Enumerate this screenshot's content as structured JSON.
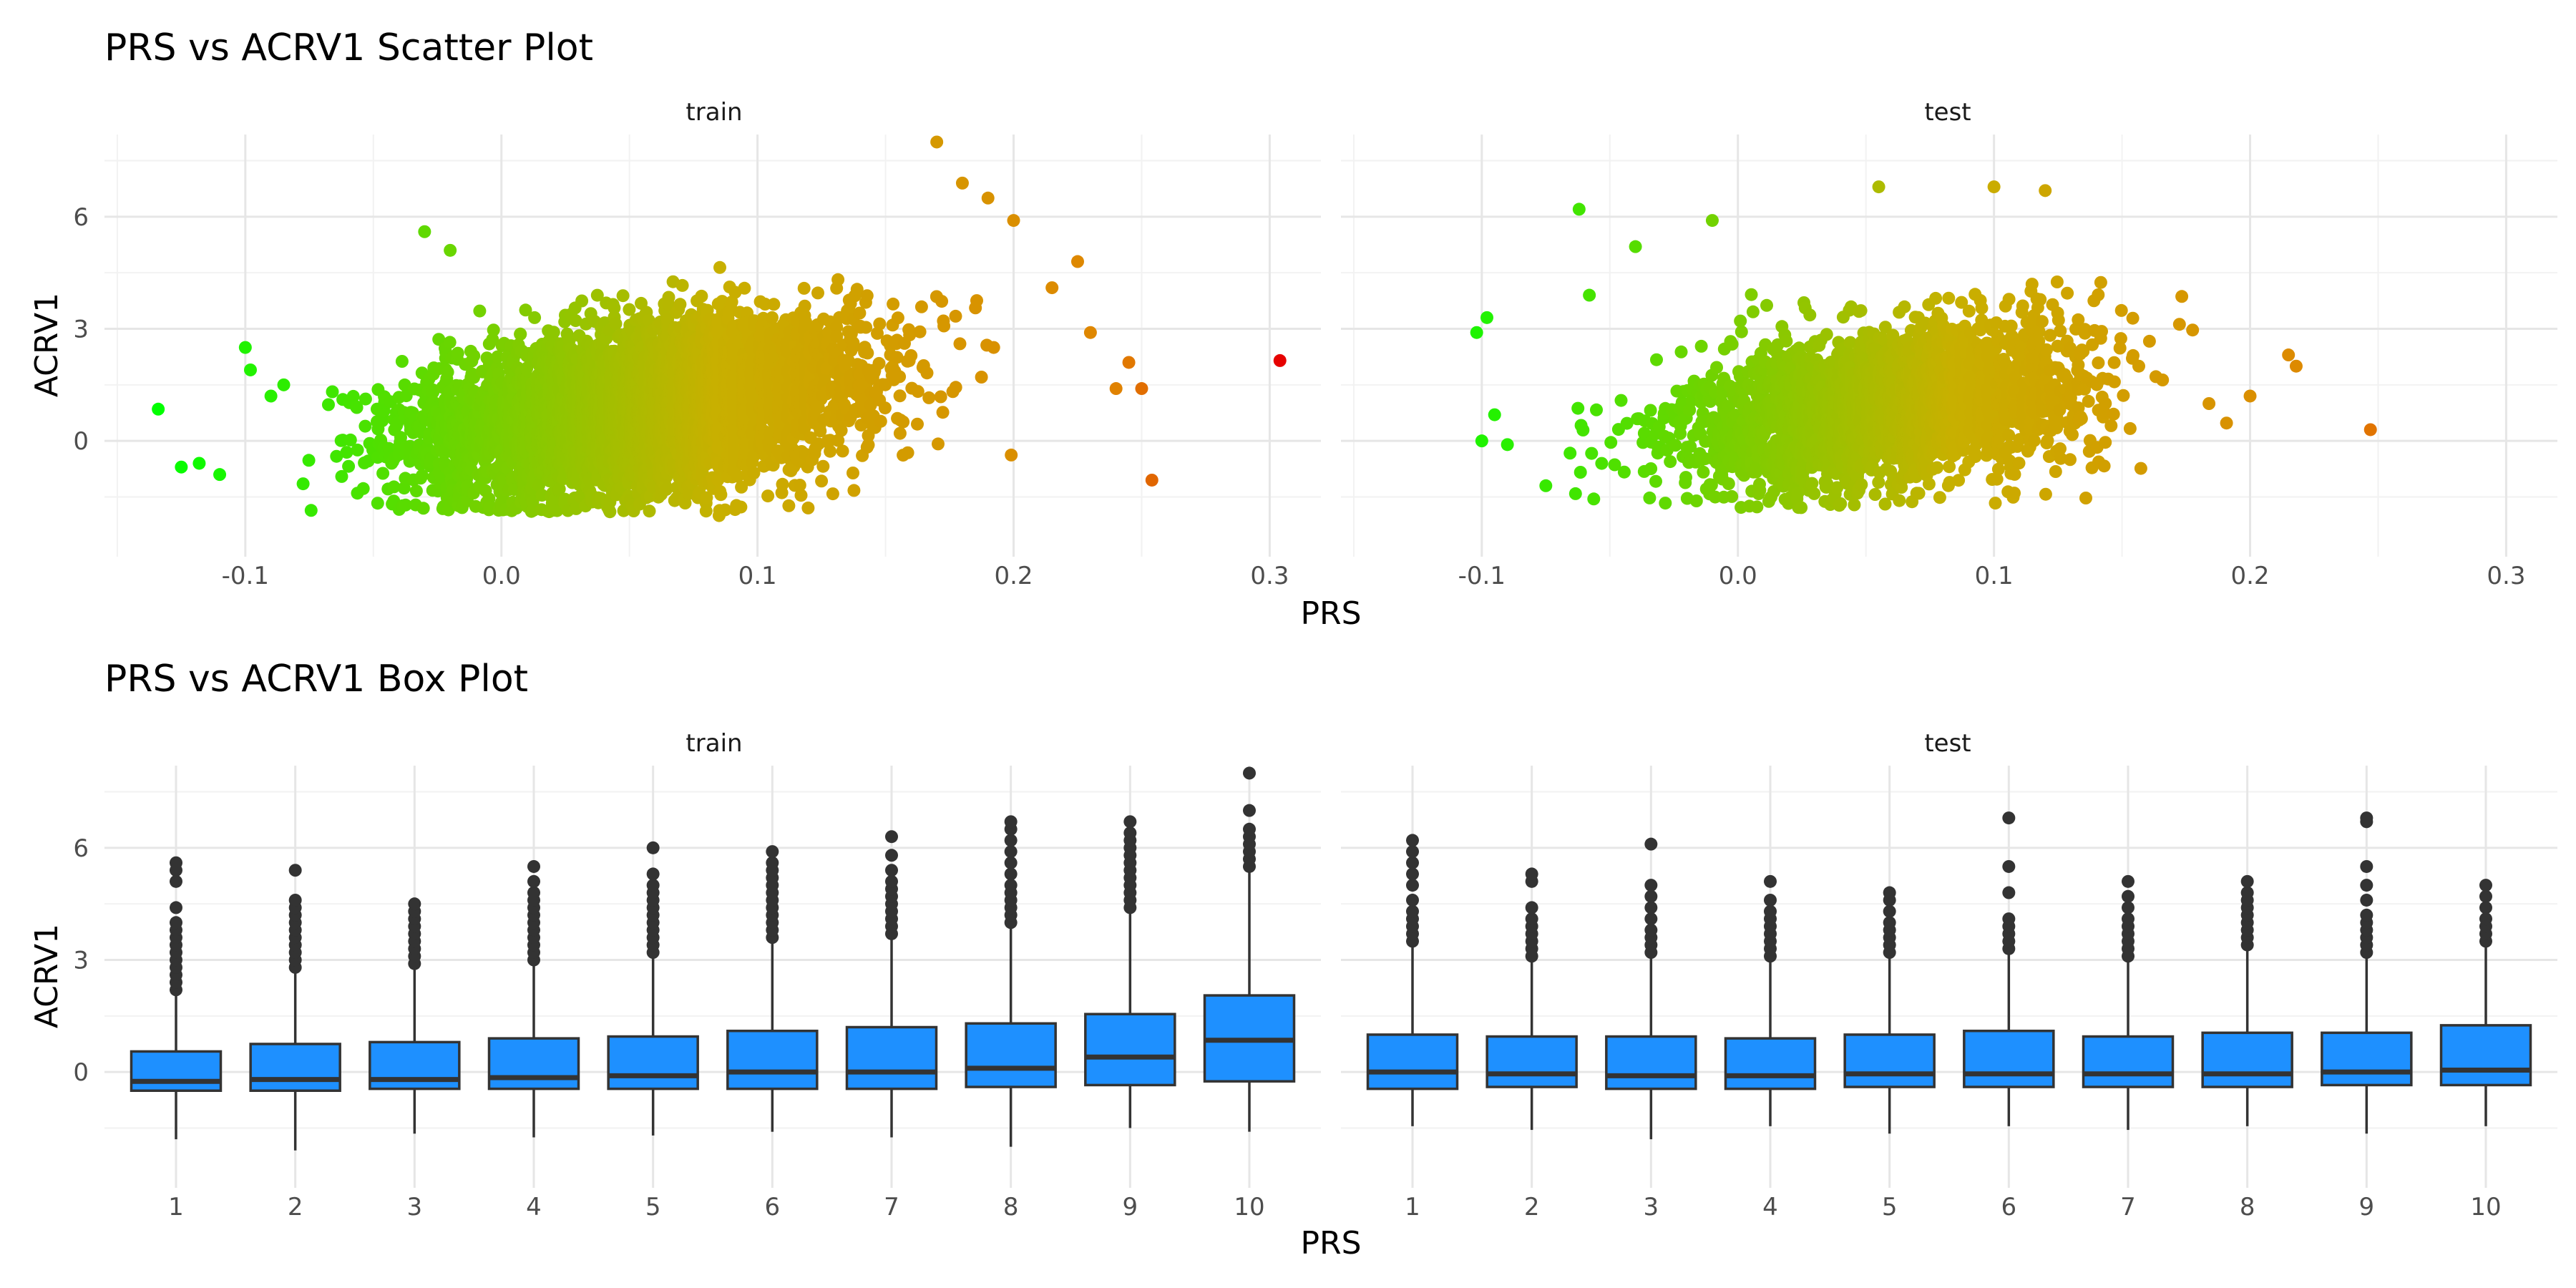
{
  "chart_data": [
    {
      "type": "scatter",
      "title": "PRS vs ACRV1 Scatter Plot",
      "xlabel": "PRS",
      "ylabel": "ACRV1",
      "xlim": [
        -0.155,
        0.32
      ],
      "ylim": [
        -3.1,
        8.2
      ],
      "x_ticks": [
        -0.1,
        0.0,
        0.1,
        0.2,
        0.3
      ],
      "x_tick_labels": [
        "-0.1",
        "0.0",
        "0.1",
        "0.2",
        "0.3"
      ],
      "y_ticks": [
        0,
        3,
        6
      ],
      "y_tick_labels": [
        "0",
        "3",
        "6"
      ],
      "grid": true,
      "legend": "none",
      "color_scale": {
        "low": "#00ff00",
        "mid": "#c8b000",
        "high": "#e60000",
        "domain": [
          -0.135,
          0.305
        ]
      },
      "panels": [
        {
          "name": "train",
          "cloud": {
            "x_center": 0.055,
            "x_sd": 0.042,
            "y_mean": 0.9,
            "y_sd": 1.05,
            "count": 5200,
            "y_floor": -1.9
          },
          "points": [
            {
              "x": -0.134,
              "y": 0.85
            },
            {
              "x": -0.125,
              "y": -0.7
            },
            {
              "x": -0.118,
              "y": -0.6
            },
            {
              "x": -0.11,
              "y": -0.9
            },
            {
              "x": -0.1,
              "y": 2.5
            },
            {
              "x": -0.098,
              "y": 1.9
            },
            {
              "x": -0.09,
              "y": 1.2
            },
            {
              "x": -0.085,
              "y": 1.5
            },
            {
              "x": -0.03,
              "y": 5.6
            },
            {
              "x": -0.02,
              "y": 5.1
            },
            {
              "x": 0.085,
              "y": -2.0
            },
            {
              "x": 0.17,
              "y": 8.0
            },
            {
              "x": 0.18,
              "y": 6.9
            },
            {
              "x": 0.19,
              "y": 6.5
            },
            {
              "x": 0.2,
              "y": 5.9
            },
            {
              "x": 0.215,
              "y": 4.1
            },
            {
              "x": 0.225,
              "y": 4.8
            },
            {
              "x": 0.23,
              "y": 2.9
            },
            {
              "x": 0.24,
              "y": 1.4
            },
            {
              "x": 0.245,
              "y": 2.1
            },
            {
              "x": 0.25,
              "y": 1.4
            },
            {
              "x": 0.254,
              "y": -1.05
            },
            {
              "x": 0.304,
              "y": 2.15
            }
          ]
        },
        {
          "name": "test",
          "cloud": {
            "x_center": 0.06,
            "x_sd": 0.04,
            "y_mean": 0.9,
            "y_sd": 1.0,
            "count": 2600,
            "y_floor": -1.8
          },
          "points": [
            {
              "x": -0.102,
              "y": 2.9
            },
            {
              "x": -0.098,
              "y": 3.3
            },
            {
              "x": -0.1,
              "y": 0.0
            },
            {
              "x": -0.095,
              "y": 0.7
            },
            {
              "x": -0.09,
              "y": -0.1
            },
            {
              "x": -0.075,
              "y": -1.2
            },
            {
              "x": -0.062,
              "y": 6.2
            },
            {
              "x": -0.058,
              "y": 3.9
            },
            {
              "x": -0.04,
              "y": 5.2
            },
            {
              "x": -0.01,
              "y": 5.9
            },
            {
              "x": 0.055,
              "y": 6.8
            },
            {
              "x": 0.1,
              "y": 6.8
            },
            {
              "x": 0.12,
              "y": 6.7
            },
            {
              "x": 0.2,
              "y": 1.2
            },
            {
              "x": 0.215,
              "y": 2.3
            },
            {
              "x": 0.218,
              "y": 2.0
            },
            {
              "x": 0.247,
              "y": 0.3
            }
          ]
        }
      ]
    },
    {
      "type": "box",
      "title": "PRS vs ACRV1 Box Plot",
      "xlabel": "PRS",
      "ylabel": "ACRV1",
      "categories": [
        "1",
        "2",
        "3",
        "4",
        "5",
        "6",
        "7",
        "8",
        "9",
        "10"
      ],
      "ylim": [
        -3.1,
        8.2
      ],
      "y_ticks": [
        0,
        3,
        6
      ],
      "y_tick_labels": [
        "0",
        "3",
        "6"
      ],
      "grid": true,
      "box_fill": "#1e90ff",
      "box_stroke": "#333333",
      "panels": [
        {
          "name": "train",
          "boxes": [
            {
              "category": "1",
              "q1": -0.5,
              "median": -0.25,
              "q3": 0.55,
              "whisker_low": -1.8,
              "whisker_high": 2.1,
              "outliers": [
                2.2,
                2.4,
                2.6,
                2.8,
                3.0,
                3.2,
                3.4,
                3.6,
                3.8,
                4.0,
                4.4,
                5.1,
                5.4,
                5.6
              ]
            },
            {
              "category": "2",
              "q1": -0.5,
              "median": -0.2,
              "q3": 0.75,
              "whisker_low": -2.1,
              "whisker_high": 2.7,
              "outliers": [
                2.8,
                3.0,
                3.2,
                3.4,
                3.6,
                3.8,
                4.0,
                4.2,
                4.4,
                4.6,
                5.4
              ]
            },
            {
              "category": "3",
              "q1": -0.45,
              "median": -0.2,
              "q3": 0.8,
              "whisker_low": -1.65,
              "whisker_high": 2.8,
              "outliers": [
                2.9,
                3.1,
                3.3,
                3.5,
                3.7,
                3.9,
                4.1,
                4.3,
                4.5
              ]
            },
            {
              "category": "4",
              "q1": -0.45,
              "median": -0.15,
              "q3": 0.9,
              "whisker_low": -1.75,
              "whisker_high": 2.9,
              "outliers": [
                3.0,
                3.2,
                3.4,
                3.6,
                3.8,
                4.0,
                4.2,
                4.4,
                4.6,
                4.8,
                5.1,
                5.5
              ]
            },
            {
              "category": "5",
              "q1": -0.45,
              "median": -0.1,
              "q3": 0.95,
              "whisker_low": -1.7,
              "whisker_high": 3.1,
              "outliers": [
                3.2,
                3.4,
                3.6,
                3.8,
                4.0,
                4.2,
                4.4,
                4.6,
                4.8,
                5.0,
                5.3,
                6.0
              ]
            },
            {
              "category": "6",
              "q1": -0.45,
              "median": 0.0,
              "q3": 1.1,
              "whisker_low": -1.6,
              "whisker_high": 3.5,
              "outliers": [
                3.6,
                3.8,
                4.0,
                4.2,
                4.4,
                4.6,
                4.8,
                5.0,
                5.2,
                5.4,
                5.6,
                5.9
              ]
            },
            {
              "category": "7",
              "q1": -0.45,
              "median": 0.0,
              "q3": 1.2,
              "whisker_low": -1.75,
              "whisker_high": 3.6,
              "outliers": [
                3.7,
                3.9,
                4.1,
                4.3,
                4.5,
                4.7,
                4.9,
                5.1,
                5.4,
                5.8,
                6.3
              ]
            },
            {
              "category": "8",
              "q1": -0.4,
              "median": 0.1,
              "q3": 1.3,
              "whisker_low": -2.0,
              "whisker_high": 3.9,
              "outliers": [
                4.0,
                4.2,
                4.4,
                4.6,
                4.8,
                5.0,
                5.3,
                5.6,
                5.9,
                6.2,
                6.5,
                6.7
              ]
            },
            {
              "category": "9",
              "q1": -0.35,
              "median": 0.4,
              "q3": 1.55,
              "whisker_low": -1.5,
              "whisker_high": 4.3,
              "outliers": [
                4.4,
                4.6,
                4.8,
                5.0,
                5.2,
                5.4,
                5.6,
                5.8,
                6.0,
                6.2,
                6.4,
                6.7
              ]
            },
            {
              "category": "10",
              "q1": -0.25,
              "median": 0.85,
              "q3": 2.05,
              "whisker_low": -1.6,
              "whisker_high": 5.4,
              "outliers": [
                5.5,
                5.7,
                5.9,
                6.1,
                6.3,
                6.5,
                7.0,
                8.0
              ]
            }
          ]
        },
        {
          "name": "test",
          "boxes": [
            {
              "category": "1",
              "q1": -0.45,
              "median": 0.0,
              "q3": 1.0,
              "whisker_low": -1.45,
              "whisker_high": 3.4,
              "outliers": [
                3.5,
                3.7,
                3.9,
                4.1,
                4.3,
                4.6,
                5.0,
                5.3,
                5.6,
                5.9,
                6.2
              ]
            },
            {
              "category": "2",
              "q1": -0.4,
              "median": -0.05,
              "q3": 0.95,
              "whisker_low": -1.55,
              "whisker_high": 3.0,
              "outliers": [
                3.1,
                3.3,
                3.5,
                3.7,
                3.9,
                4.1,
                4.4,
                5.1,
                5.3
              ]
            },
            {
              "category": "3",
              "q1": -0.45,
              "median": -0.1,
              "q3": 0.95,
              "whisker_low": -1.8,
              "whisker_high": 3.1,
              "outliers": [
                3.2,
                3.4,
                3.6,
                3.8,
                4.1,
                4.4,
                4.7,
                5.0,
                6.1
              ]
            },
            {
              "category": "4",
              "q1": -0.45,
              "median": -0.1,
              "q3": 0.9,
              "whisker_low": -1.45,
              "whisker_high": 3.0,
              "outliers": [
                3.1,
                3.3,
                3.5,
                3.7,
                3.9,
                4.1,
                4.3,
                4.6,
                5.1
              ]
            },
            {
              "category": "5",
              "q1": -0.4,
              "median": -0.05,
              "q3": 1.0,
              "whisker_low": -1.65,
              "whisker_high": 3.1,
              "outliers": [
                3.2,
                3.4,
                3.6,
                3.8,
                4.0,
                4.3,
                4.6,
                4.8
              ]
            },
            {
              "category": "6",
              "q1": -0.4,
              "median": -0.05,
              "q3": 1.1,
              "whisker_low": -1.45,
              "whisker_high": 3.2,
              "outliers": [
                3.3,
                3.5,
                3.7,
                3.9,
                4.1,
                4.8,
                5.5,
                6.8
              ]
            },
            {
              "category": "7",
              "q1": -0.4,
              "median": -0.05,
              "q3": 0.95,
              "whisker_low": -1.55,
              "whisker_high": 3.0,
              "outliers": [
                3.1,
                3.3,
                3.5,
                3.7,
                3.9,
                4.1,
                4.4,
                4.7,
                5.1
              ]
            },
            {
              "category": "8",
              "q1": -0.4,
              "median": -0.05,
              "q3": 1.05,
              "whisker_low": -1.45,
              "whisker_high": 3.3,
              "outliers": [
                3.4,
                3.6,
                3.8,
                4.0,
                4.2,
                4.4,
                4.6,
                4.8,
                5.1
              ]
            },
            {
              "category": "9",
              "q1": -0.35,
              "median": 0.0,
              "q3": 1.05,
              "whisker_low": -1.65,
              "whisker_high": 3.1,
              "outliers": [
                3.2,
                3.4,
                3.6,
                3.8,
                4.0,
                4.2,
                4.6,
                5.0,
                5.5,
                6.7,
                6.8
              ]
            },
            {
              "category": "10",
              "q1": -0.35,
              "median": 0.05,
              "q3": 1.25,
              "whisker_low": -1.45,
              "whisker_high": 3.4,
              "outliers": [
                3.5,
                3.7,
                3.9,
                4.1,
                4.4,
                4.7,
                5.0
              ]
            }
          ]
        }
      ]
    }
  ]
}
